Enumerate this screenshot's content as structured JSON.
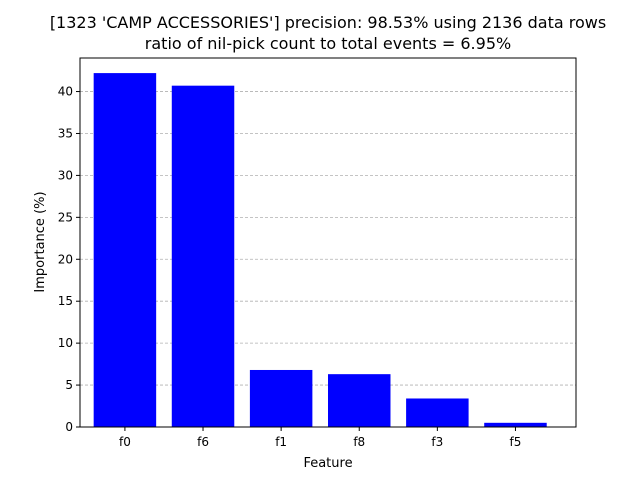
{
  "chart_data": {
    "type": "bar",
    "title_lines": [
      "[1323 'CAMP ACCESSORIES'] precision: 98.53% using 2136 data rows",
      "ratio of nil-pick count to total events = 6.95%"
    ],
    "xlabel": "Feature",
    "ylabel": "Importance (%)",
    "categories": [
      "f0",
      "f6",
      "f1",
      "f8",
      "f3",
      "f5"
    ],
    "values": [
      42.2,
      40.7,
      6.8,
      6.3,
      3.4,
      0.5
    ],
    "ylim": [
      0,
      44
    ],
    "yticks": [
      0,
      5,
      10,
      15,
      20,
      25,
      30,
      35,
      40
    ],
    "grid": "y dashed",
    "bar_color": "#0000ff",
    "grid_color": "#b0b0b0"
  }
}
